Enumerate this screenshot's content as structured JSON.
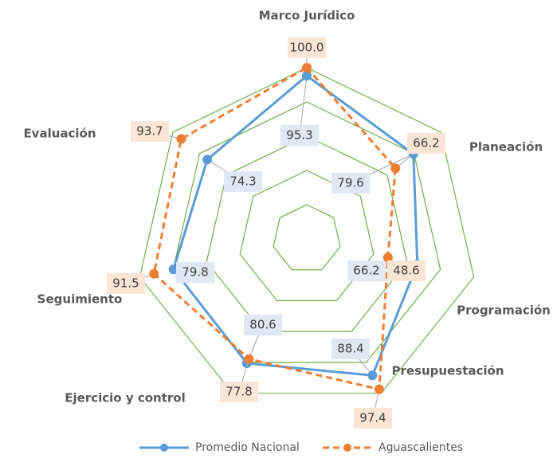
{
  "chart_data": {
    "type": "radar",
    "categories": [
      "Marco Jurídico",
      "Planeación",
      "Programación",
      "Presupuestación",
      "Ejercicio y control",
      "Seguimiento",
      "Evaluación"
    ],
    "series": [
      {
        "name": "Promedio Nacional",
        "color": "#5b9bd5",
        "values": [
          95.3,
          79.6,
          66.2,
          88.4,
          80.6,
          79.8,
          74.3
        ]
      },
      {
        "name": "Aguascalientes",
        "color": "#ed7d31",
        "values": [
          100.0,
          66.2,
          48.6,
          97.4,
          77.8,
          91.5,
          93.7
        ],
        "value_labels": [
          "100.0",
          "66.2",
          "48.6",
          "97.4",
          "77.8",
          "91.5",
          "93.7"
        ]
      }
    ],
    "ylim": [
      0,
      100
    ],
    "yticks": [
      0,
      20,
      40,
      60,
      80,
      100
    ],
    "grid": true,
    "grid_color": "#70ad47",
    "legend": "bottom"
  }
}
